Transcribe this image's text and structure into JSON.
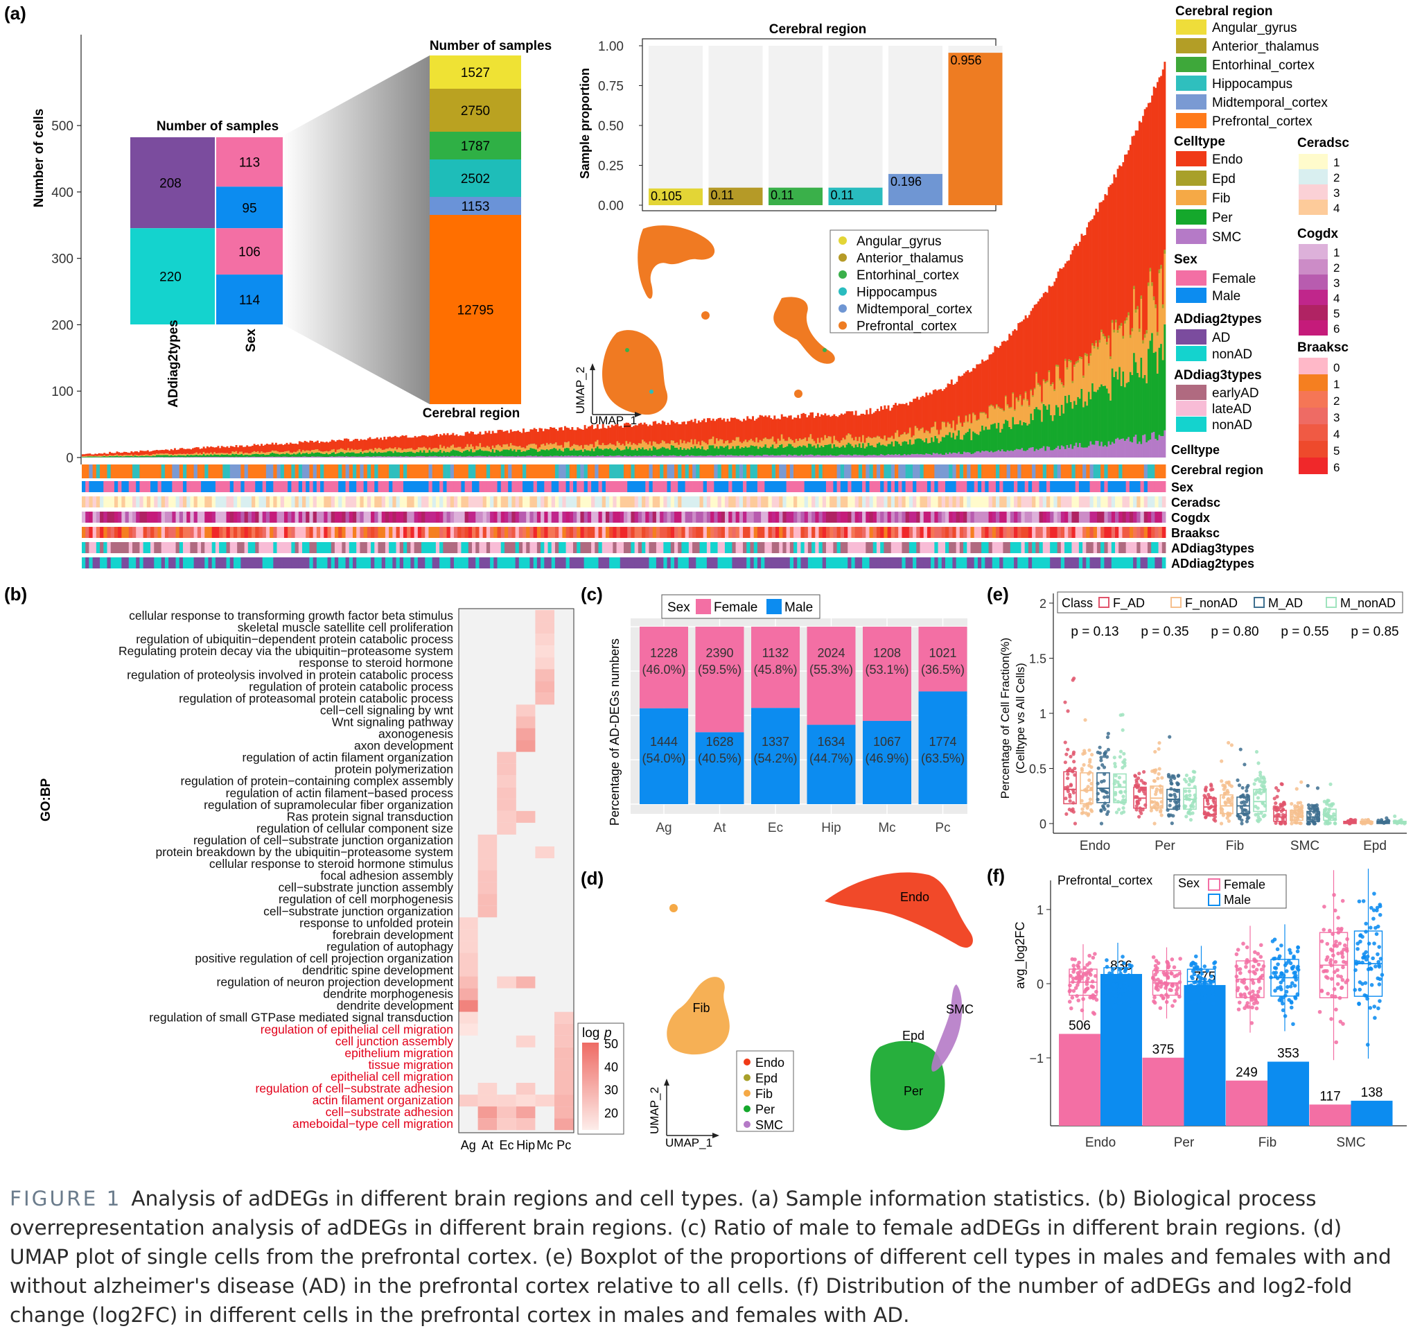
{
  "colors": {
    "female": "#F36FA4",
    "male": "#0C8CF0",
    "endo": "#F03A17",
    "epd": "#A8A02A",
    "fib": "#F5A946",
    "per": "#15A82C",
    "smc": "#B57AC7",
    "panel_bg": "#F2F2F2",
    "ad": "#7B4C9E",
    "nonad": "#14D3CE",
    "red_term": "#E2001A"
  },
  "panel_a": {
    "label": "(a)",
    "y_label": "Number of cells",
    "y_ticks": [
      "0",
      "100",
      "200",
      "300",
      "400",
      "500"
    ],
    "y_tick_values": [
      0,
      100,
      200,
      300,
      400,
      500
    ],
    "samples_title": "Number of samples",
    "addiag": {
      "values": [
        208,
        220
      ],
      "labels": [
        "208",
        "220"
      ],
      "axis": "ADdiag2types"
    },
    "sex": {
      "values": [
        113,
        95,
        106,
        114
      ],
      "labels": [
        "113",
        "95",
        "106",
        "114"
      ],
      "axis": "Sex"
    },
    "region_title": "Number of samples",
    "region_axis": "Cerebral region",
    "region_values": [
      1527,
      2750,
      1787,
      2502,
      1153,
      12795
    ],
    "region_labels": [
      "1527",
      "2750",
      "1787",
      "2502",
      "1153",
      "12795"
    ],
    "region_colors": [
      "#EFE234",
      "#BAA221",
      "#2FB045",
      "#1EBDB9",
      "#6A93D8",
      "#FF6F00"
    ],
    "prop_title": "Cerebral region",
    "prop_ylabel": "Sample proportion",
    "prop_ticks": [
      "0.00",
      "0.25",
      "0.50",
      "0.75",
      "1.00"
    ],
    "prop_values": [
      0.105,
      0.11,
      0.11,
      0.11,
      0.196,
      0.956
    ],
    "prop_labels": [
      "0.105",
      "0.11",
      "0.11",
      "0.11",
      "0.196",
      "0.956"
    ],
    "prop_colors": [
      "#E3D536",
      "#B59A27",
      "#3AB04A",
      "#29BCBF",
      "#6F96D3",
      "#EE7C22"
    ],
    "umap_x": "UMAP_1",
    "umap_y": "UMAP_2",
    "umap_legend": [
      "Angular_gyrus",
      "Anterior_thalamus",
      "Entorhinal_cortex",
      "Hippocampus",
      "Midtemporal_cortex",
      "Prefrontal_cortex"
    ],
    "track_labels": [
      "Celltype",
      "Cerebral region",
      "Sex",
      "Ceradsc",
      "Cogdx",
      "Braaksc",
      "ADdiag3types",
      "ADdiag2types"
    ]
  },
  "legend_a": {
    "region_title": "Cerebral region",
    "region_items": [
      "Angular_gyrus",
      "Anterior_thalamus",
      "Entorhinal_cortex",
      "Hippocampus",
      "Midtemporal_cortex",
      "Prefrontal_cortex"
    ],
    "region_colors": [
      "#EFDD3A",
      "#B39E26",
      "#3EA83A",
      "#2FBFBE",
      "#7A9AD3",
      "#FF7A1A"
    ],
    "celltype_title": "Celltype",
    "celltype_items": [
      "Endo",
      "Epd",
      "Fib",
      "Per",
      "SMC"
    ],
    "sex_title": "Sex",
    "sex_items": [
      "Female",
      "Male"
    ],
    "ad2_title": "ADdiag2types",
    "ad2_items": [
      "AD",
      "nonAD"
    ],
    "ad3_title": "ADdiag3types",
    "ad3_items": [
      "earlyAD",
      "lateAD",
      "nonAD"
    ],
    "ad3_colors": [
      "#B06A80",
      "#F8BCD6",
      "#14D3CE"
    ],
    "ceradsc_title": "Ceradsc",
    "ceradsc_items": [
      "1",
      "2",
      "3",
      "4"
    ],
    "ceradsc_colors": [
      "#FFFBCC",
      "#D9EFF0",
      "#FBD1D6",
      "#FDCB9A"
    ],
    "cogdx_title": "Cogdx",
    "cogdx_items": [
      "1",
      "2",
      "3",
      "4",
      "5",
      "6"
    ],
    "cogdx_colors": [
      "#DDB1DA",
      "#CC8CC7",
      "#B85CAF",
      "#C0268B",
      "#B02363",
      "#C51B7A"
    ],
    "braaksc_title": "Braaksc",
    "braaksc_items": [
      "0",
      "1",
      "2",
      "3",
      "4",
      "5",
      "6"
    ],
    "braaksc_colors": [
      "#FFB8C8",
      "#F57F20",
      "#F57656",
      "#EE6B64",
      "#F05A44",
      "#EE4A2C",
      "#F0282A"
    ]
  },
  "panel_b": {
    "label": "(b)",
    "ylabel": "GO:BP",
    "terms": [
      "cellular response to transforming growth factor beta stimulus",
      "skeletal muscle satellite cell proliferation",
      "regulation of ubiquitin−dependent protein catabolic process",
      "Regulating protein decay via the ubiquitin−proteasome system",
      "response to steroid hormone",
      "regulation of proteolysis involved in protein catabolic process",
      "regulation of protein catabolic process",
      "regulation of proteasomal protein catabolic process",
      "cell−cell signaling by wnt",
      "Wnt signaling pathway",
      "axonogenesis",
      "axon development",
      "regulation of actin filament organization",
      "protein polymerization",
      "regulation of protein−containing complex assembly",
      "regulation of actin filament−based process",
      "regulation of supramolecular fiber organization",
      "Ras protein signal transduction",
      "regulation of cellular component size",
      "regulation of cell−substrate junction organization",
      "protein breakdown by the ubiquitin−proteasome system",
      "cellular response to steroid hormone stimulus",
      "focal adhesion assembly",
      "cell−substrate junction assembly",
      "regulation of cell morphogenesis",
      "cell−substrate junction organization",
      "response to unfolded protein",
      "forebrain development",
      "regulation of autophagy",
      "positive regulation of cell projection organization",
      "dendritic spine development",
      "regulation of neuron projection development",
      "dendrite morphogenesis",
      "dendrite development",
      "regulation of small GTPase mediated signal transduction",
      "regulation of epithelial cell migration",
      "cell junction assembly",
      "epithelium migration",
      "tissue migration",
      "epithelial cell migration",
      "regulation of cell−substrate adhesion",
      "actin filament organization",
      "cell−substrate adhesion",
      "ameboidal−type cell migration"
    ],
    "red_from": 35,
    "columns": [
      "Ag",
      "At",
      "Ec",
      "Hip",
      "Mc",
      "Pc"
    ],
    "legend_title_a": "log",
    "legend_title_b": "p",
    "legend_ticks": [
      "50",
      "40",
      "30",
      "20"
    ],
    "legend_tick_values": [
      50,
      40,
      30,
      20
    ],
    "cells": [
      [
        0,
        4,
        26
      ],
      [
        1,
        4,
        26
      ],
      [
        2,
        4,
        24
      ],
      [
        3,
        4,
        22
      ],
      [
        4,
        4,
        24
      ],
      [
        5,
        4,
        30
      ],
      [
        6,
        4,
        32
      ],
      [
        7,
        4,
        30
      ],
      [
        8,
        3,
        26
      ],
      [
        9,
        3,
        30
      ],
      [
        10,
        3,
        36
      ],
      [
        11,
        3,
        38
      ],
      [
        12,
        2,
        28
      ],
      [
        13,
        2,
        28
      ],
      [
        14,
        2,
        26
      ],
      [
        15,
        2,
        28
      ],
      [
        16,
        2,
        28
      ],
      [
        17,
        2,
        26
      ],
      [
        17,
        3,
        30
      ],
      [
        18,
        2,
        26
      ],
      [
        19,
        1,
        26
      ],
      [
        20,
        1,
        26
      ],
      [
        20,
        4,
        24
      ],
      [
        21,
        1,
        26
      ],
      [
        22,
        1,
        28
      ],
      [
        23,
        1,
        28
      ],
      [
        24,
        1,
        30
      ],
      [
        25,
        1,
        30
      ],
      [
        26,
        0,
        24
      ],
      [
        27,
        0,
        24
      ],
      [
        28,
        0,
        24
      ],
      [
        29,
        0,
        26
      ],
      [
        30,
        0,
        26
      ],
      [
        31,
        0,
        30
      ],
      [
        31,
        2,
        24
      ],
      [
        31,
        3,
        32
      ],
      [
        32,
        0,
        34
      ],
      [
        33,
        0,
        44
      ],
      [
        34,
        0,
        22
      ],
      [
        34,
        5,
        26
      ],
      [
        35,
        0,
        20
      ],
      [
        35,
        5,
        28
      ],
      [
        36,
        3,
        24
      ],
      [
        36,
        5,
        28
      ],
      [
        37,
        5,
        30
      ],
      [
        38,
        5,
        30
      ],
      [
        39,
        5,
        30
      ],
      [
        40,
        1,
        24
      ],
      [
        40,
        3,
        26
      ],
      [
        40,
        5,
        30
      ],
      [
        41,
        0,
        26
      ],
      [
        41,
        1,
        24
      ],
      [
        41,
        2,
        24
      ],
      [
        41,
        3,
        22
      ],
      [
        41,
        4,
        24
      ],
      [
        41,
        5,
        32
      ],
      [
        42,
        1,
        38
      ],
      [
        42,
        2,
        28
      ],
      [
        42,
        3,
        36
      ],
      [
        42,
        5,
        32
      ],
      [
        43,
        1,
        34
      ],
      [
        43,
        2,
        26
      ],
      [
        43,
        3,
        28
      ],
      [
        43,
        5,
        36
      ]
    ]
  },
  "panel_c": {
    "label": "(c)",
    "legend_title": "Sex",
    "legend_items": [
      "Female",
      "Male"
    ],
    "ylabel": "Percentage of AD-DEGs numbers",
    "categories": [
      "Ag",
      "At",
      "Ec",
      "Hip",
      "Mc",
      "Pc"
    ],
    "female_values": [
      1228,
      2390,
      1132,
      2024,
      1208,
      1021
    ],
    "male_values": [
      1444,
      1628,
      1337,
      1634,
      1067,
      1774
    ],
    "female_pct": [
      46.0,
      59.5,
      45.8,
      55.3,
      53.1,
      36.5
    ],
    "male_pct": [
      54.0,
      40.5,
      54.2,
      44.7,
      46.9,
      63.5
    ],
    "female_labels": [
      "1228",
      "2390",
      "1132",
      "2024",
      "1208",
      "1021"
    ],
    "female_pct_labels": [
      "(46.0%)",
      "(59.5%)",
      "(45.8%)",
      "(55.3%)",
      "(53.1%)",
      "(36.5%)"
    ],
    "male_labels": [
      "1444",
      "1628",
      "1337",
      "1634",
      "1067",
      "1774"
    ],
    "male_pct_labels": [
      "(54.0%)",
      "(40.5%)",
      "(54.2%)",
      "(44.7%)",
      "(46.9%)",
      "(63.5%)"
    ]
  },
  "panel_d": {
    "label": "(d)",
    "cluster_labels": [
      "Endo",
      "Fib",
      "SMC",
      "Epd",
      "Per"
    ],
    "legend_items": [
      "Endo",
      "Epd",
      "Fib",
      "Per",
      "SMC"
    ],
    "umap_x": "UMAP_1",
    "umap_y": "UMAP_2"
  },
  "panel_e": {
    "label": "(e)",
    "legend_title": "Class",
    "legend_items": [
      "F_AD",
      "F_nonAD",
      "M_AD",
      "M_nonAD"
    ],
    "legend_colors": [
      "#E1536B",
      "#F6C08E",
      "#3E6F8F",
      "#9FE3BE"
    ],
    "pvalues": [
      "p = 0.13",
      "p = 0.35",
      "p = 0.80",
      "p = 0.55",
      "p = 0.85"
    ],
    "ylabel1": "Percentage of Cell Fraction(%)",
    "ylabel2": "(Celltype vs All Cells)",
    "y_ticks": [
      "0",
      "0.5",
      "1",
      "1.5",
      "2"
    ],
    "y_tick_values": [
      0,
      0.5,
      1,
      1.5,
      2
    ],
    "categories": [
      "Endo",
      "Per",
      "Fib",
      "SMC",
      "Epd"
    ],
    "medians": [
      [
        0.31,
        0.3,
        0.32,
        0.33
      ],
      [
        0.23,
        0.23,
        0.22,
        0.22
      ],
      [
        0.15,
        0.16,
        0.16,
        0.2
      ],
      [
        0.06,
        0.06,
        0.06,
        0.07
      ],
      [
        0.01,
        0.01,
        0.01,
        0.01
      ]
    ],
    "q1": [
      [
        0.18,
        0.18,
        0.19,
        0.19
      ],
      [
        0.14,
        0.14,
        0.13,
        0.13
      ],
      [
        0.08,
        0.09,
        0.09,
        0.11
      ],
      [
        0.02,
        0.03,
        0.02,
        0.03
      ],
      [
        0,
        0,
        0,
        0
      ]
    ],
    "q3": [
      [
        0.47,
        0.46,
        0.46,
        0.45
      ],
      [
        0.33,
        0.34,
        0.31,
        0.32
      ],
      [
        0.23,
        0.26,
        0.24,
        0.31
      ],
      [
        0.12,
        0.12,
        0.11,
        0.13
      ],
      [
        0.02,
        0.02,
        0.02,
        0.02
      ]
    ]
  },
  "panel_f": {
    "label": "(f)",
    "subtitle": "Prefrontal_cortex",
    "legend_title": "Sex",
    "legend_items": [
      "Female",
      "Male"
    ],
    "ylabel": "avg_log2FC",
    "y_ticks": [
      "1",
      "0",
      "−1"
    ],
    "y_tick_values": [
      1,
      0,
      -1
    ],
    "categories": [
      "Endo",
      "Per",
      "Fib",
      "SMC"
    ],
    "female_counts": [
      506,
      375,
      249,
      117
    ],
    "male_counts": [
      836,
      775,
      353,
      138
    ],
    "female_count_labels": [
      "506",
      "375",
      "249",
      "117"
    ],
    "male_count_labels": [
      "836",
      "775",
      "353",
      "138"
    ]
  },
  "caption": {
    "figure_label": "FIGURE 1",
    "text": "Analysis of adDEGs in different brain regions and cell types. (a) Sample information statistics. (b) Biological process overrepresentation analysis of adDEGs in different brain regions. (c) Ratio of male to female adDEGs in different brain regions. (d) UMAP plot of single cells from the prefrontal cortex. (e) Boxplot of the proportions of different cell types in males and females with and without alzheimer's disease (AD) in the prefrontal cortex relative to all cells. (f) Distribution of the number of adDEGs and log2-fold change (log2FC) in different cells in the prefrontal cortex in males and females with AD."
  },
  "chart_data": [
    {
      "type": "bar",
      "title": "Number of samples",
      "categories": [
        "ADdiag2types",
        "Sex"
      ],
      "series": [
        {
          "name": "AD",
          "values": [
            208,
            null
          ]
        },
        {
          "name": "nonAD",
          "values": [
            220,
            null
          ]
        },
        {
          "name": "Female",
          "values": [
            null,
            113
          ]
        },
        {
          "name": "Male",
          "values": [
            null,
            95
          ]
        },
        {
          "name": "Female",
          "values": [
            null,
            106
          ]
        },
        {
          "name": "Male",
          "values": [
            null,
            114
          ]
        }
      ]
    },
    {
      "type": "bar",
      "title": "Number of samples",
      "xlabel": "Cerebral region",
      "categories": [
        "Angular_gyrus",
        "Anterior_thalamus",
        "Entorhinal_cortex",
        "Hippocampus",
        "Midtemporal_cortex",
        "Prefrontal_cortex"
      ],
      "values": [
        1527,
        2750,
        1787,
        2502,
        1153,
        12795
      ]
    },
    {
      "type": "bar",
      "title": "Cerebral region",
      "ylabel": "Sample proportion",
      "categories": [
        "Angular_gyrus",
        "Anterior_thalamus",
        "Entorhinal_cortex",
        "Hippocampus",
        "Midtemporal_cortex",
        "Prefrontal_cortex"
      ],
      "values": [
        0.105,
        0.11,
        0.11,
        0.11,
        0.196,
        0.956
      ],
      "ylim": [
        0,
        1
      ]
    },
    {
      "type": "bar",
      "ylabel": "Number of cells",
      "ylim": [
        0,
        500
      ],
      "note_series": [
        "Endo",
        "Epd",
        "Fib",
        "Per",
        "SMC"
      ]
    },
    {
      "type": "heatmap",
      "ylabel": "GO:BP",
      "categories": [
        "Ag",
        "At",
        "Ec",
        "Hip",
        "Mc",
        "Pc"
      ],
      "legend": "log p"
    },
    {
      "type": "bar",
      "ylabel": "Percentage of AD-DEGs numbers",
      "categories": [
        "Ag",
        "At",
        "Ec",
        "Hip",
        "Mc",
        "Pc"
      ],
      "series": [
        {
          "name": "Female",
          "values": [
            1228,
            2390,
            1132,
            2024,
            1208,
            1021
          ]
        },
        {
          "name": "Male",
          "values": [
            1444,
            1628,
            1337,
            1634,
            1067,
            1774
          ]
        }
      ]
    },
    {
      "type": "scatter",
      "xlabel": "UMAP_1",
      "ylabel": "UMAP_2",
      "series": [
        {
          "name": "Endo"
        },
        {
          "name": "Epd"
        },
        {
          "name": "Fib"
        },
        {
          "name": "Per"
        },
        {
          "name": "SMC"
        }
      ]
    },
    {
      "type": "bar",
      "ylabel": "Percentage of Cell Fraction(%) (Celltype vs All Cells)",
      "categories": [
        "Endo",
        "Per",
        "Fib",
        "SMC",
        "Epd"
      ],
      "ylim": [
        0,
        2
      ],
      "annotations": [
        "p = 0.13",
        "p = 0.35",
        "p = 0.80",
        "p = 0.55",
        "p = 0.85"
      ]
    },
    {
      "type": "bar",
      "title": "Prefrontal_cortex",
      "ylabel": "avg_log2FC",
      "categories": [
        "Endo",
        "Per",
        "Fib",
        "SMC"
      ],
      "series": [
        {
          "name": "Female",
          "values": [
            506,
            375,
            249,
            117
          ]
        },
        {
          "name": "Male",
          "values": [
            836,
            775,
            353,
            138
          ]
        }
      ]
    }
  ]
}
